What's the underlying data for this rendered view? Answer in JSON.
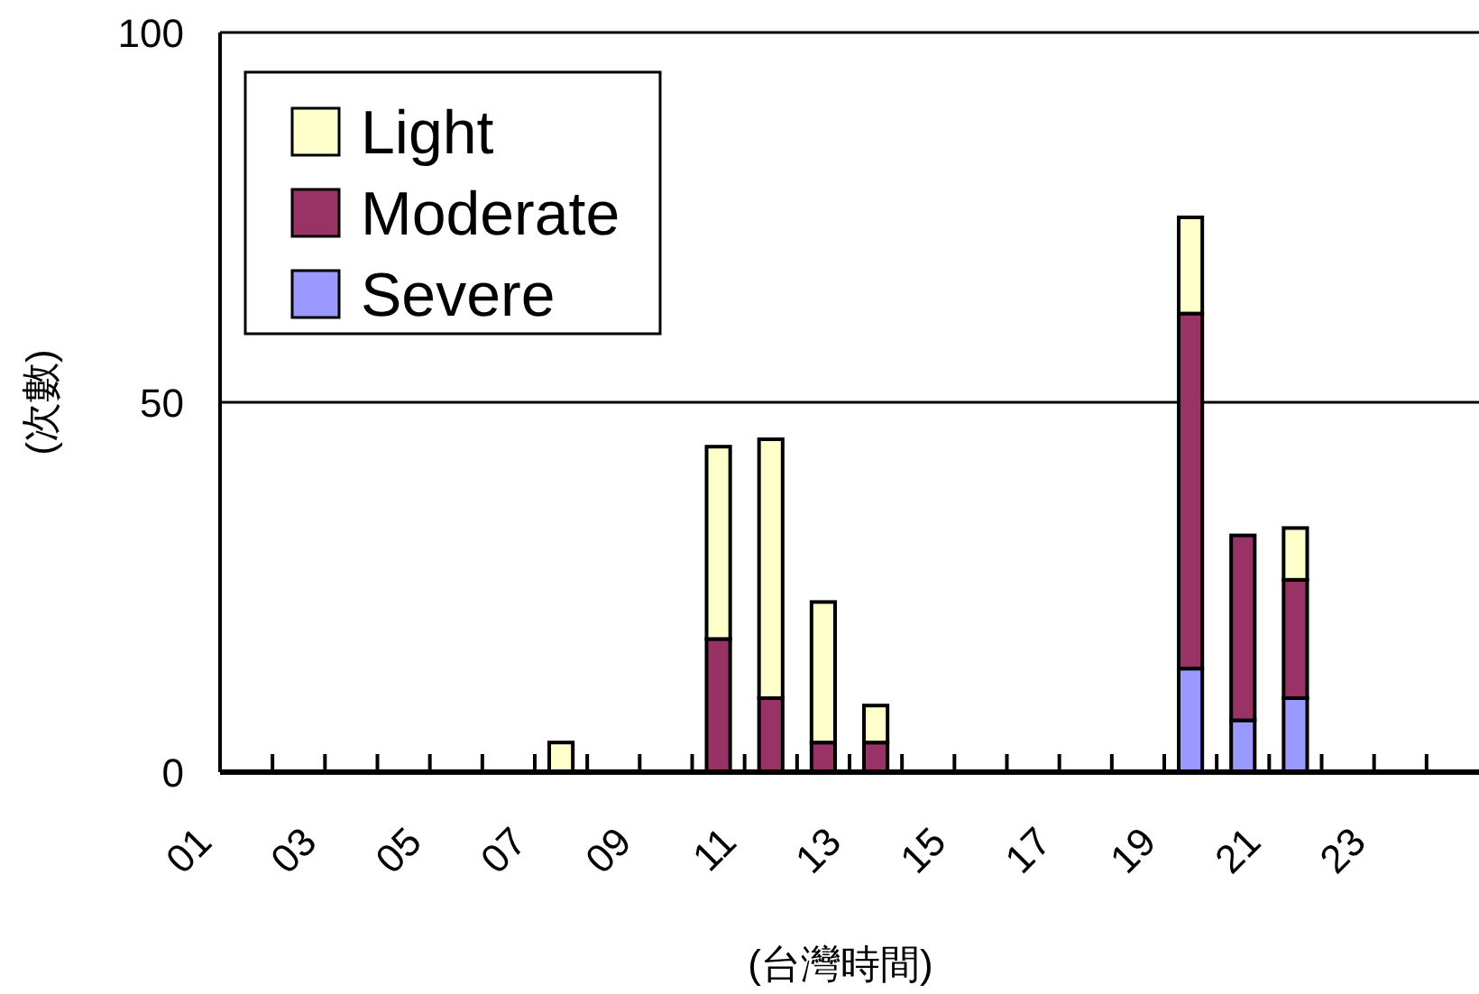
{
  "chart_data": {
    "type": "bar",
    "stacked": true,
    "xlabel": "(台灣時間)",
    "ylabel": "(次數)",
    "categories": [
      "01",
      null,
      "03",
      null,
      "05",
      null,
      "07",
      null,
      "09",
      null,
      "11",
      null,
      "13",
      null,
      "15",
      null,
      "17",
      null,
      "19",
      null,
      "21",
      null,
      "23",
      null
    ],
    "series": [
      {
        "name": "Severe",
        "color": "#9999ff",
        "values": [
          0,
          0,
          0,
          0,
          0,
          0,
          0,
          0,
          0,
          0,
          0,
          0,
          0,
          0,
          0,
          0,
          0,
          0,
          14,
          7,
          10,
          0,
          0,
          0
        ]
      },
      {
        "name": "Moderate",
        "color": "#993366",
        "values": [
          0,
          0,
          0,
          0,
          0,
          0,
          0,
          0,
          0,
          18,
          10,
          4,
          4,
          0,
          0,
          0,
          0,
          0,
          48,
          25,
          16,
          0,
          0,
          0
        ]
      },
      {
        "name": "Light",
        "color": "#ffffcc",
        "values": [
          0,
          0,
          0,
          0,
          0,
          0,
          4,
          0,
          0,
          26,
          35,
          19,
          5,
          0,
          0,
          0,
          0,
          0,
          13,
          0,
          7,
          0,
          0,
          0
        ]
      }
    ],
    "ylim": [
      0,
      100
    ],
    "yticks": [
      0,
      50,
      100
    ],
    "grid": "y",
    "legend": "top left"
  }
}
